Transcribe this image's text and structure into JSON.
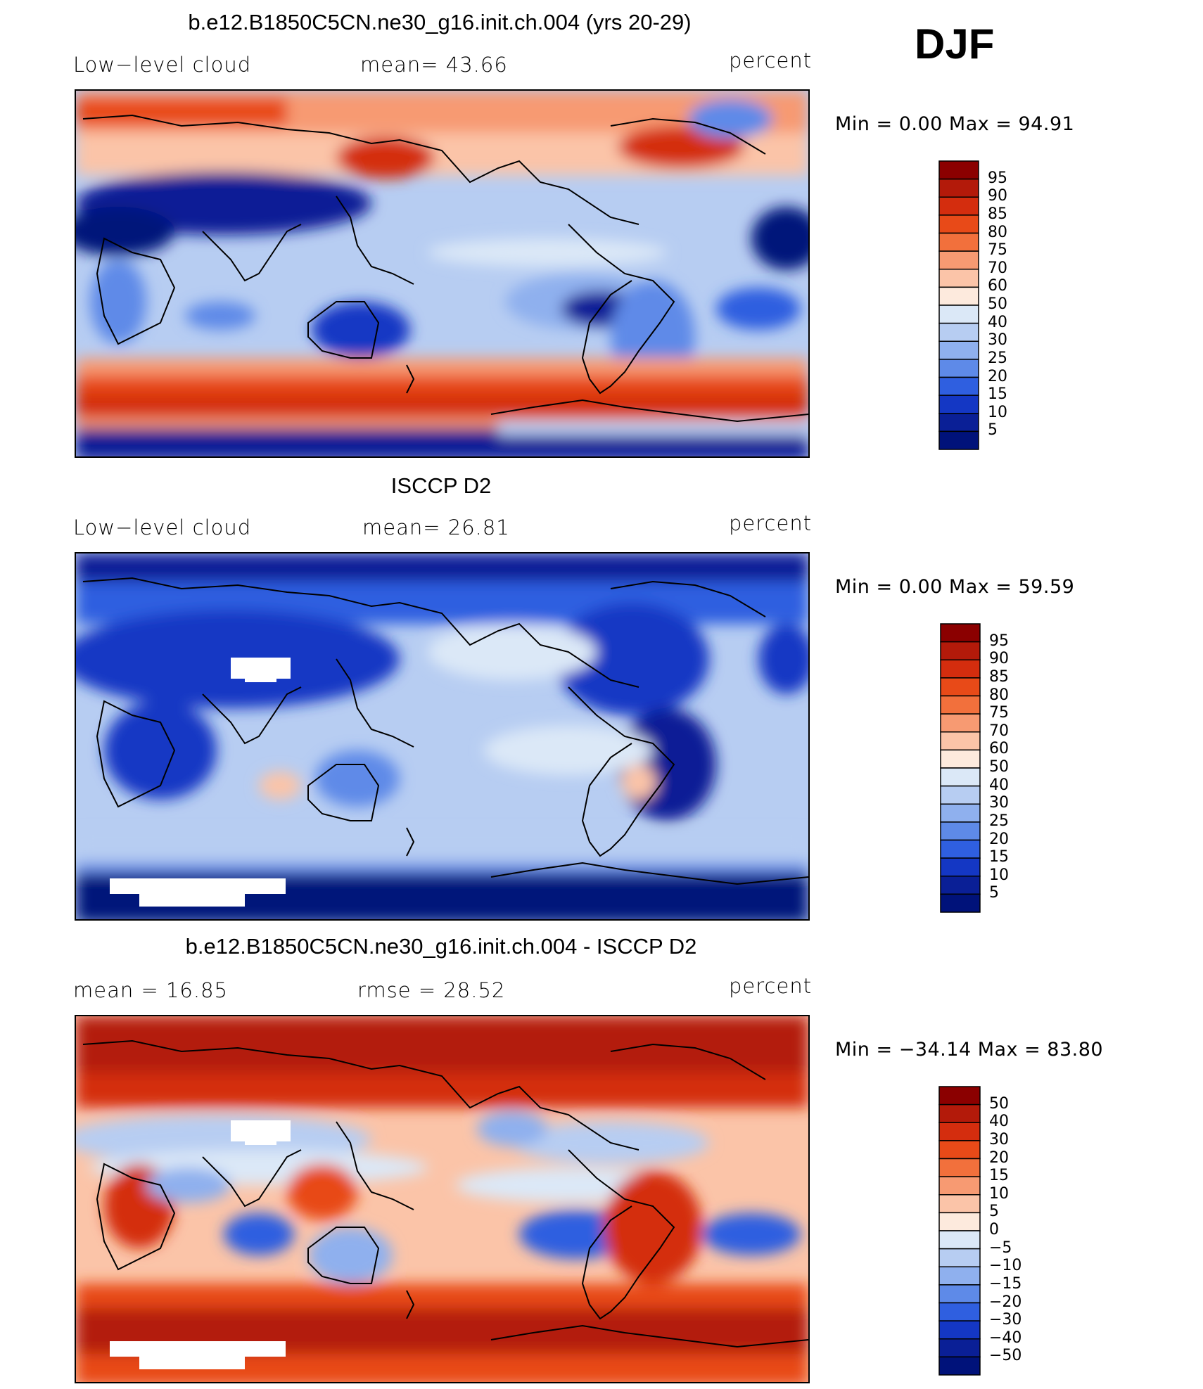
{
  "season": "DJF",
  "panels": [
    {
      "title": "b.e12.B1850C5CN.ne30_g16.init.ch.004 (yrs 20-29)",
      "left_label": "Low−level cloud",
      "center_label": "mean=   43.66",
      "right_label": "percent",
      "minmax": "Min =    0.00  Max =   94.91"
    },
    {
      "title": "ISCCP D2",
      "left_label": "Low−level cloud",
      "center_label": "mean=   26.81",
      "right_label": "percent",
      "minmax": "Min =    0.00  Max =   59.59"
    },
    {
      "title": "b.e12.B1850C5CN.ne30_g16.init.ch.004 - ISCCP D2",
      "left_label": "mean  =    16.85",
      "center_label": "rmse  =    28.52",
      "right_label": "percent",
      "minmax": "Min = −34.14  Max =   83.80"
    }
  ],
  "chart_data": [
    {
      "type": "heatmap",
      "title": "b.e12.B1850C5CN.ne30_g16.init.ch.004 (yrs 20-29)",
      "variable": "Low−level cloud",
      "units": "percent",
      "mean": 43.66,
      "min": 0.0,
      "max": 94.91,
      "colorbar_levels": [
        "95",
        "90",
        "85",
        "80",
        "75",
        "70",
        "60",
        "50",
        "40",
        "30",
        "25",
        "20",
        "15",
        "10",
        "5"
      ],
      "colors": [
        "#8b0000",
        "#b31a0a",
        "#d42d0e",
        "#e84a18",
        "#f2703c",
        "#f79a72",
        "#fbc4a8",
        "#fdeadd",
        "#dbe8f7",
        "#b7cdf2",
        "#8fb0ee",
        "#5e8ae8",
        "#2f5fe0",
        "#1437c4",
        "#0a1f96",
        "#00127a"
      ]
    },
    {
      "type": "heatmap",
      "title": "ISCCP D2",
      "variable": "Low−level cloud",
      "units": "percent",
      "mean": 26.81,
      "min": 0.0,
      "max": 59.59,
      "colorbar_levels": [
        "95",
        "90",
        "85",
        "80",
        "75",
        "70",
        "60",
        "50",
        "40",
        "30",
        "25",
        "20",
        "15",
        "10",
        "5"
      ],
      "colors": [
        "#8b0000",
        "#b31a0a",
        "#d42d0e",
        "#e84a18",
        "#f2703c",
        "#f79a72",
        "#fbc4a8",
        "#fdeadd",
        "#dbe8f7",
        "#b7cdf2",
        "#8fb0ee",
        "#5e8ae8",
        "#2f5fe0",
        "#1437c4",
        "#0a1f96",
        "#00127a"
      ]
    },
    {
      "type": "heatmap",
      "title": "b.e12.B1850C5CN.ne30_g16.init.ch.004 - ISCCP D2",
      "units": "percent",
      "mean": 16.85,
      "rmse": 28.52,
      "min": -34.14,
      "max": 83.8,
      "colorbar_levels": [
        "50",
        "40",
        "30",
        "20",
        "15",
        "10",
        "5",
        "0",
        "−5",
        "−10",
        "−15",
        "−20",
        "−30",
        "−40",
        "−50"
      ],
      "colors": [
        "#8b0000",
        "#b31a0a",
        "#d42d0e",
        "#e84a18",
        "#f2703c",
        "#f79a72",
        "#fbc4a8",
        "#fdeadd",
        "#dbe8f7",
        "#b7cdf2",
        "#8fb0ee",
        "#5e8ae8",
        "#2f5fe0",
        "#1437c4",
        "#0a1f96",
        "#00127a"
      ]
    }
  ]
}
